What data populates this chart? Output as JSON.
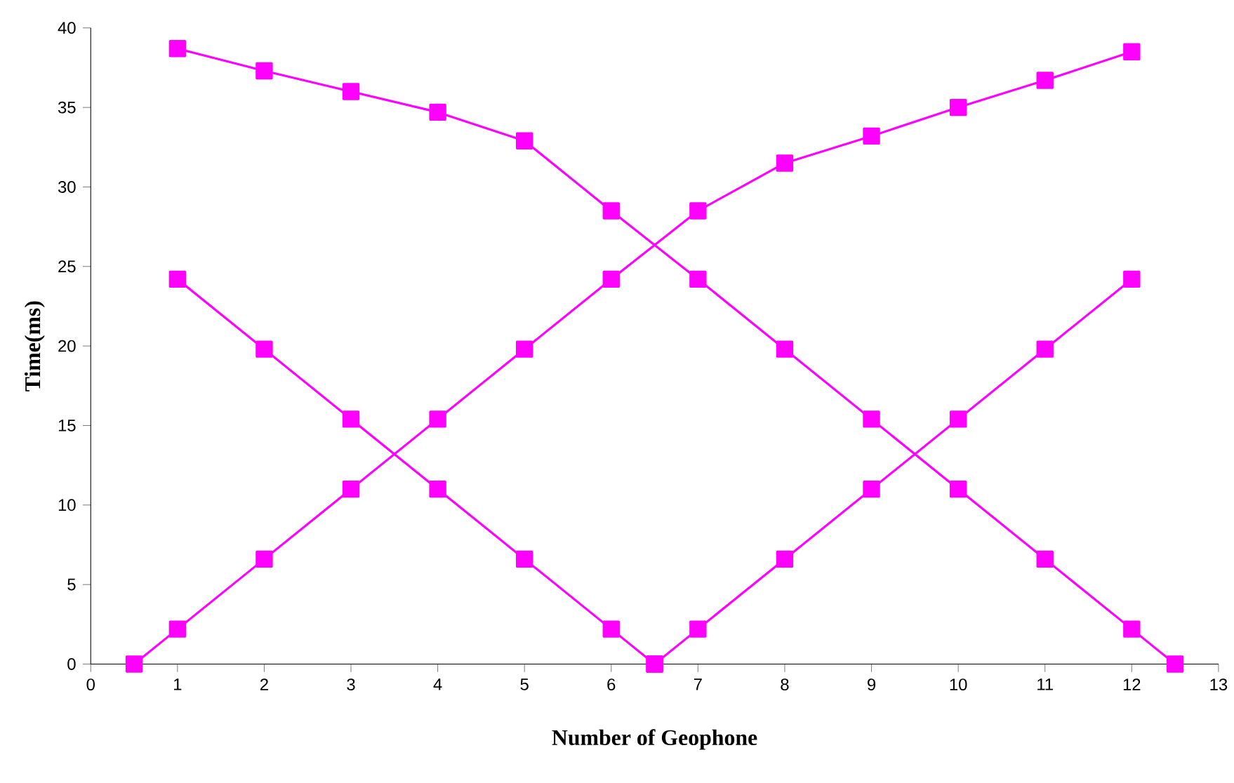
{
  "chart_data": {
    "type": "line",
    "xlabel": "Number of Geophone",
    "ylabel": "Time(ms)",
    "xlim": [
      0,
      13
    ],
    "ylim": [
      0,
      40
    ],
    "xticks": [
      0,
      1,
      2,
      3,
      4,
      5,
      6,
      7,
      8,
      9,
      10,
      11,
      12,
      13
    ],
    "yticks": [
      0,
      5,
      10,
      15,
      20,
      25,
      30,
      35,
      40
    ],
    "grid": false,
    "marker": "square",
    "line_style": "solid",
    "series": [
      {
        "color": "#ff00ff",
        "x": [
          0.5,
          1,
          2,
          3,
          4,
          5,
          6,
          7,
          8,
          9,
          10,
          11,
          12
        ],
        "values": [
          0,
          2.2,
          6.6,
          11,
          15.4,
          19.8,
          24.2,
          28.5,
          31.5,
          33.2,
          35,
          36.7,
          38.5
        ]
      },
      {
        "color": "#ff00ff",
        "x": [
          1,
          2,
          3,
          4,
          5,
          6,
          7,
          8,
          9,
          10,
          11,
          12,
          12.5
        ],
        "values": [
          38.7,
          37.3,
          36,
          34.7,
          32.9,
          28.5,
          24.2,
          19.8,
          15.4,
          11,
          6.6,
          2.2,
          0
        ]
      },
      {
        "color": "#ff00ff",
        "x": [
          1,
          2,
          3,
          4,
          5,
          6,
          6.5
        ],
        "values": [
          24.2,
          19.8,
          15.4,
          11,
          6.6,
          2.2,
          0
        ]
      },
      {
        "color": "#ff00ff",
        "x": [
          6.5,
          7,
          8,
          9,
          10,
          11,
          12
        ],
        "values": [
          0,
          2.2,
          6.6,
          11,
          15.4,
          19.8,
          24.2
        ]
      }
    ]
  }
}
